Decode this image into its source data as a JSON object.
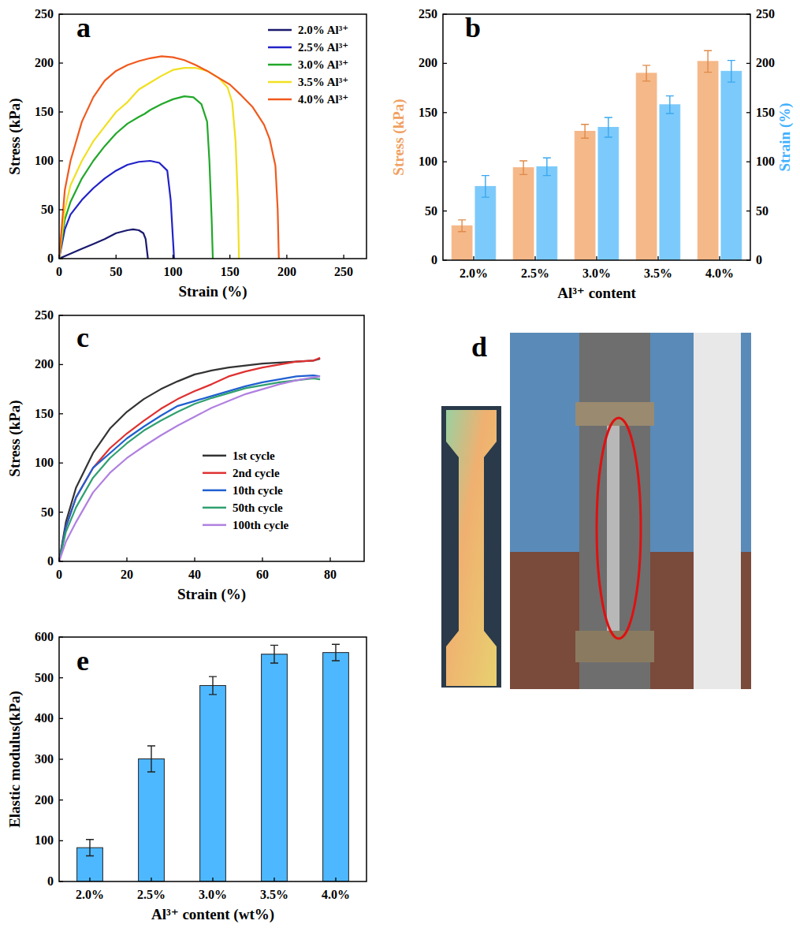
{
  "chart_data": [
    {
      "type": "line",
      "panel_label": "a",
      "x_label": "Strain (%)",
      "y_label": "Stress (kPa)",
      "xlim": [
        0,
        270
      ],
      "xticks": [
        0,
        50,
        100,
        150,
        200,
        250
      ],
      "ylim": [
        0,
        250
      ],
      "yticks": [
        0,
        50,
        100,
        150,
        200,
        250
      ],
      "legend": "top-right",
      "series": [
        {
          "name": "2.0% Al³⁺",
          "color": "#1a1a6e",
          "x": [
            0,
            10,
            20,
            30,
            40,
            50,
            60,
            65,
            70,
            74,
            76,
            77,
            78
          ],
          "values": [
            0,
            5,
            10,
            15,
            20,
            26,
            29,
            30,
            29,
            26,
            20,
            10,
            0
          ]
        },
        {
          "name": "2.5% Al³⁺",
          "color": "#2222c8",
          "x": [
            0,
            5,
            10,
            20,
            30,
            40,
            50,
            60,
            70,
            80,
            88,
            95,
            98,
            100,
            101
          ],
          "values": [
            0,
            30,
            45,
            60,
            72,
            82,
            90,
            96,
            99,
            100,
            98,
            90,
            60,
            20,
            0
          ]
        },
        {
          "name": "3.0% Al³⁺",
          "color": "#22a82a",
          "x": [
            0,
            5,
            10,
            20,
            30,
            40,
            50,
            60,
            70,
            75,
            80,
            90,
            100,
            110,
            118,
            125,
            130,
            132,
            134,
            135
          ],
          "values": [
            0,
            40,
            58,
            82,
            100,
            115,
            128,
            138,
            145,
            148,
            152,
            158,
            163,
            166,
            165,
            158,
            140,
            100,
            40,
            0
          ]
        },
        {
          "name": "3.5% Al³⁺",
          "color": "#f0e020",
          "x": [
            0,
            5,
            10,
            20,
            30,
            40,
            50,
            60,
            70,
            80,
            90,
            100,
            110,
            120,
            130,
            140,
            148,
            152,
            155,
            157,
            158
          ],
          "values": [
            0,
            50,
            75,
            100,
            120,
            135,
            150,
            160,
            173,
            180,
            187,
            193,
            195,
            195,
            192,
            185,
            175,
            160,
            120,
            60,
            0
          ]
        },
        {
          "name": "4.0% Al³⁺",
          "color": "#f05a1e",
          "x": [
            0,
            5,
            10,
            20,
            30,
            40,
            50,
            60,
            70,
            80,
            90,
            100,
            110,
            120,
            130,
            140,
            150,
            160,
            170,
            180,
            185,
            190,
            192,
            193
          ],
          "values": [
            0,
            70,
            100,
            140,
            165,
            182,
            192,
            198,
            202,
            205,
            207,
            206,
            203,
            198,
            192,
            185,
            178,
            167,
            155,
            137,
            122,
            95,
            50,
            0
          ]
        }
      ]
    },
    {
      "type": "bar",
      "panel_label": "b",
      "x_label": "Al³⁺ content",
      "y_label": "Stress (kPa)",
      "y2_label": "Strain (%)",
      "categories": [
        "2.0%",
        "2.5%",
        "3.0%",
        "3.5%",
        "4.0%"
      ],
      "ylim": [
        0,
        250
      ],
      "yticks": [
        0,
        50,
        100,
        150,
        200,
        250
      ],
      "y2lim": [
        0,
        250
      ],
      "y2ticks": [
        0,
        50,
        100,
        150,
        200,
        250
      ],
      "series": [
        {
          "color": "#f5b889",
          "values": [
            35,
            94,
            131,
            190,
            202
          ],
          "errors": [
            6,
            7,
            7,
            8,
            11
          ]
        },
        {
          "color": "#7ccafb",
          "values": [
            75,
            95,
            135,
            158,
            192
          ],
          "errors": [
            11,
            9,
            10,
            9,
            11
          ],
          "axis": "y2"
        }
      ]
    },
    {
      "type": "line",
      "panel_label": "c",
      "x_label": "Strain (%)",
      "y_label": "Stress (kPa)",
      "xlim": [
        0,
        90
      ],
      "xticks": [
        0,
        20,
        40,
        60,
        80
      ],
      "ylim": [
        0,
        250
      ],
      "yticks": [
        0,
        50,
        100,
        150,
        200,
        250
      ],
      "legend": "right",
      "series": [
        {
          "name": "1st cycle",
          "color": "#333333",
          "x": [
            0,
            2,
            5,
            10,
            15,
            20,
            25,
            30,
            35,
            40,
            45,
            50,
            55,
            60,
            65,
            70,
            75,
            77
          ],
          "values": [
            0,
            40,
            75,
            110,
            135,
            152,
            165,
            175,
            183,
            190,
            194,
            197,
            199,
            201,
            202,
            203,
            204,
            206
          ]
        },
        {
          "name": "2nd cycle",
          "color": "#e03030",
          "x": [
            0,
            2,
            5,
            10,
            15,
            20,
            25,
            30,
            35,
            40,
            45,
            50,
            55,
            60,
            65,
            70,
            75,
            77
          ],
          "values": [
            0,
            35,
            65,
            95,
            115,
            130,
            143,
            155,
            165,
            173,
            180,
            188,
            193,
            197,
            200,
            203,
            204,
            207
          ]
        },
        {
          "name": "10th cycle",
          "color": "#1f5fd0",
          "x": [
            0,
            2,
            5,
            10,
            15,
            20,
            25,
            30,
            35,
            40,
            45,
            50,
            55,
            60,
            65,
            70,
            75,
            77
          ],
          "values": [
            0,
            35,
            65,
            95,
            110,
            125,
            137,
            148,
            158,
            163,
            168,
            173,
            178,
            182,
            185,
            188,
            189,
            188
          ]
        },
        {
          "name": "50th cycle",
          "color": "#30a070",
          "x": [
            0,
            2,
            5,
            10,
            15,
            20,
            25,
            30,
            35,
            40,
            45,
            50,
            55,
            60,
            65,
            70,
            75,
            77
          ],
          "values": [
            0,
            30,
            55,
            85,
            105,
            120,
            133,
            143,
            152,
            160,
            166,
            171,
            176,
            179,
            182,
            184,
            186,
            185
          ]
        },
        {
          "name": "100th cycle",
          "color": "#b080e0",
          "x": [
            0,
            2,
            5,
            10,
            15,
            20,
            25,
            30,
            35,
            40,
            45,
            50,
            55,
            60,
            65,
            70,
            75,
            77
          ],
          "values": [
            0,
            20,
            40,
            70,
            90,
            105,
            117,
            128,
            138,
            147,
            156,
            163,
            170,
            175,
            180,
            184,
            187,
            188
          ]
        }
      ]
    },
    {
      "type": "bar",
      "panel_label": "e",
      "x_label": "Al³⁺ content (wt%)",
      "y_label": "Elastic modulus(kPa)",
      "categories": [
        "2.0%",
        "2.5%",
        "3.0%",
        "3.5%",
        "4.0%"
      ],
      "ylim": [
        0,
        600
      ],
      "yticks": [
        0,
        100,
        200,
        300,
        400,
        500,
        600
      ],
      "series": [
        {
          "color": "#4db8ff",
          "values": [
            83,
            301,
            481,
            558,
            562
          ],
          "errors": [
            20,
            32,
            22,
            22,
            20
          ]
        }
      ]
    }
  ],
  "photo": {
    "panel_label": "d"
  }
}
